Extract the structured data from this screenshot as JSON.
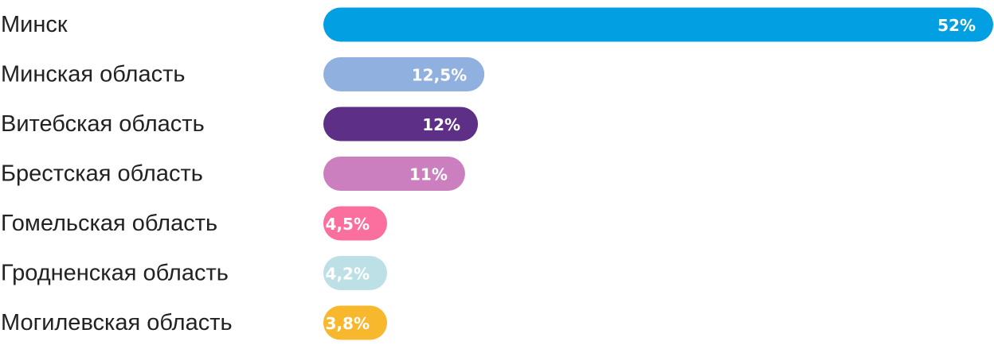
{
  "chart_data": {
    "type": "bar",
    "orientation": "horizontal",
    "categories": [
      "Минск",
      "Минская область",
      "Витебская область",
      "Брестская область",
      "Гомельская область",
      "Гродненская область",
      "Могилевская область"
    ],
    "values": [
      52,
      12.5,
      12,
      11,
      4.5,
      4.2,
      3.8
    ],
    "value_labels": [
      "52%",
      "12,5%",
      "12%",
      "11%",
      "4,5%",
      "4,2%",
      "3,8%"
    ],
    "colors": [
      "#039fe3",
      "#90b0e0",
      "#5e2f86",
      "#cc7fbe",
      "#fb6f9f",
      "#bde0e6",
      "#f8b82e"
    ],
    "xlim": [
      0,
      52
    ],
    "grid": false,
    "legend": "none"
  }
}
